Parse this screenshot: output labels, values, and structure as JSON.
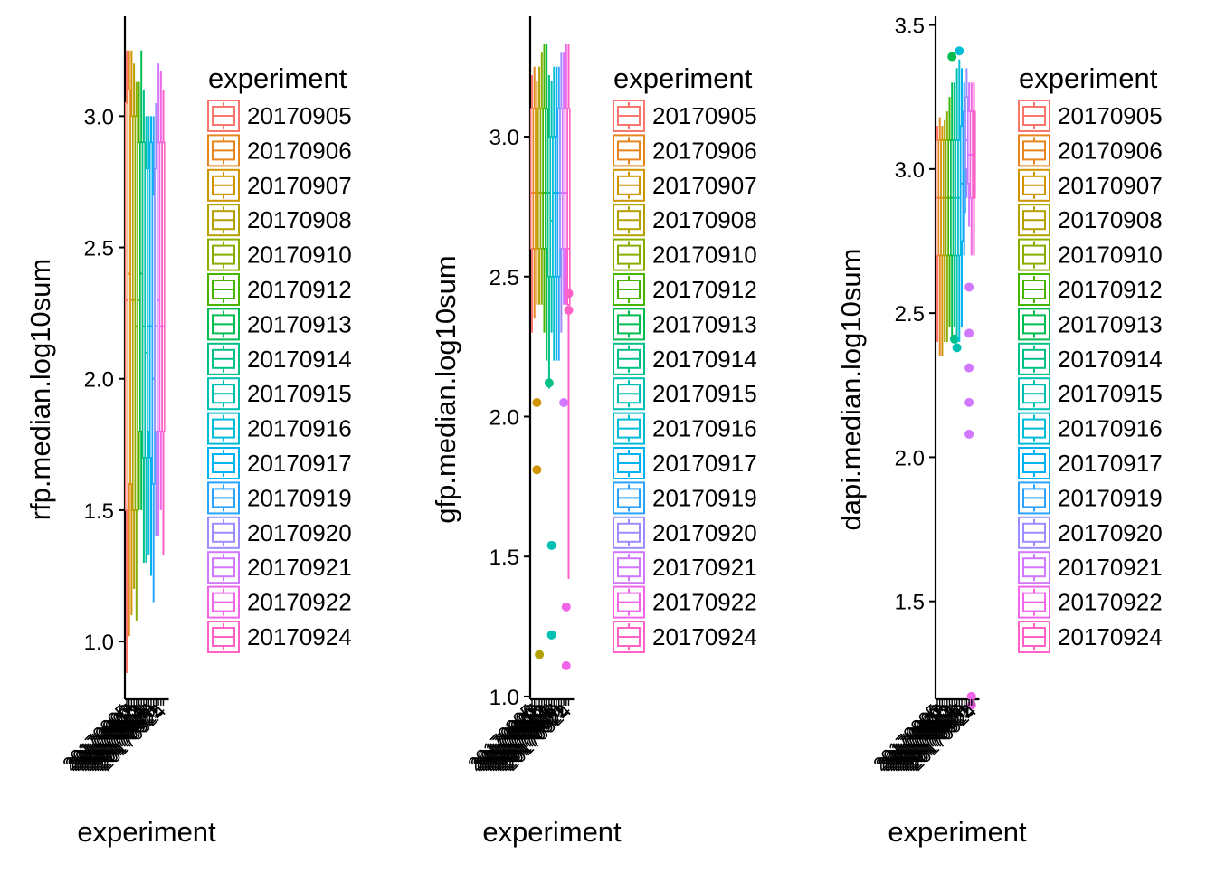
{
  "legend_title": "experiment",
  "experiments": [
    "20170905",
    "20170906",
    "20170907",
    "20170908",
    "20170910",
    "20170912",
    "20170913",
    "20170914",
    "20170915",
    "20170916",
    "20170917",
    "20170919",
    "20170920",
    "20170921",
    "20170922",
    "20170924"
  ],
  "colors": [
    "#F8766D",
    "#E7851E",
    "#D09400",
    "#B2A100",
    "#89AC00",
    "#45B500",
    "#00BC51",
    "#00C087",
    "#00C0B2",
    "#00BCD6",
    "#00B3F2",
    "#29A3FF",
    "#9C8DFF",
    "#D277FF",
    "#F166E8",
    "#FF61C7"
  ],
  "chart_data": [
    {
      "type": "boxplot",
      "xlabel": "experiment",
      "ylabel": "rfp.median.log10sum",
      "ylim": [
        0.78,
        3.38
      ],
      "yticks": [
        1.0,
        1.5,
        2.0,
        2.5,
        3.0
      ],
      "ytick_labels": [
        "1.0",
        "1.5",
        "2.0",
        "2.5",
        "3.0"
      ],
      "series": [
        {
          "name": "20170905",
          "min": 0.88,
          "q1": 1.5,
          "median": 2.3,
          "q3": 3.05,
          "max": 3.25,
          "outliers": []
        },
        {
          "name": "20170906",
          "min": 1.02,
          "q1": 1.6,
          "median": 2.4,
          "q3": 3.1,
          "max": 3.25,
          "outliers": []
        },
        {
          "name": "20170907",
          "min": 1.1,
          "q1": 1.6,
          "median": 2.3,
          "q3": 3.0,
          "max": 3.25,
          "outliers": []
        },
        {
          "name": "20170908",
          "min": 1.2,
          "q1": 1.5,
          "median": 2.3,
          "q3": 3.0,
          "max": 3.2,
          "outliers": []
        },
        {
          "name": "20170910",
          "min": 1.08,
          "q1": 1.5,
          "median": 2.2,
          "q3": 3.0,
          "max": 3.13,
          "outliers": []
        },
        {
          "name": "20170912",
          "min": 1.5,
          "q1": 1.8,
          "median": 2.3,
          "q3": 2.9,
          "max": 3.13,
          "outliers": []
        },
        {
          "name": "20170913",
          "min": 1.5,
          "q1": 1.8,
          "median": 2.4,
          "q3": 2.9,
          "max": 3.25,
          "outliers": []
        },
        {
          "name": "20170914",
          "min": 1.3,
          "q1": 1.7,
          "median": 2.2,
          "q3": 2.9,
          "max": 3.1,
          "outliers": []
        },
        {
          "name": "20170915",
          "min": 1.3,
          "q1": 1.7,
          "median": 2.1,
          "q3": 2.8,
          "max": 3.0,
          "outliers": []
        },
        {
          "name": "20170916",
          "min": 1.33,
          "q1": 1.8,
          "median": 2.2,
          "q3": 2.8,
          "max": 3.0,
          "outliers": []
        },
        {
          "name": "20170917",
          "min": 1.25,
          "q1": 1.7,
          "median": 2.2,
          "q3": 2.9,
          "max": 3.0,
          "outliers": []
        },
        {
          "name": "20170919",
          "min": 1.15,
          "q1": 1.6,
          "median": 2.0,
          "q3": 2.7,
          "max": 3.0,
          "outliers": []
        },
        {
          "name": "20170920",
          "min": 1.4,
          "q1": 1.8,
          "median": 2.2,
          "q3": 2.8,
          "max": 3.05,
          "outliers": []
        },
        {
          "name": "20170921",
          "min": 1.4,
          "q1": 1.8,
          "median": 2.3,
          "q3": 2.9,
          "max": 3.2,
          "outliers": []
        },
        {
          "name": "20170922",
          "min": 1.5,
          "q1": 1.8,
          "median": 2.2,
          "q3": 2.9,
          "max": 3.17,
          "outliers": []
        },
        {
          "name": "20170924",
          "min": 1.33,
          "q1": 1.8,
          "median": 2.2,
          "q3": 2.9,
          "max": 3.1,
          "outliers": []
        }
      ]
    },
    {
      "type": "boxplot",
      "xlabel": "experiment",
      "ylabel": "gfp.median.log10sum",
      "ylim": [
        0.99,
        3.43
      ],
      "yticks": [
        1.0,
        1.5,
        2.0,
        2.5,
        3.0
      ],
      "ytick_labels": [
        "1.0",
        "1.5",
        "2.0",
        "2.5",
        "3.0"
      ],
      "series": [
        {
          "name": "20170905",
          "min": 2.3,
          "q1": 2.6,
          "median": 2.8,
          "q3": 3.1,
          "max": 3.22,
          "outliers": []
        },
        {
          "name": "20170906",
          "min": 2.35,
          "q1": 2.6,
          "median": 2.8,
          "q3": 3.1,
          "max": 3.25,
          "outliers": []
        },
        {
          "name": "20170907",
          "min": 2.4,
          "q1": 2.6,
          "median": 2.8,
          "q3": 3.1,
          "max": 3.2,
          "outliers": [
            2.05,
            1.81
          ]
        },
        {
          "name": "20170908",
          "min": 2.4,
          "q1": 2.6,
          "median": 2.8,
          "q3": 3.1,
          "max": 3.25,
          "outliers": [
            1.15
          ]
        },
        {
          "name": "20170910",
          "min": 2.4,
          "q1": 2.6,
          "median": 2.8,
          "q3": 3.1,
          "max": 3.3,
          "outliers": []
        },
        {
          "name": "20170912",
          "min": 2.3,
          "q1": 2.6,
          "median": 2.8,
          "q3": 3.1,
          "max": 3.33,
          "outliers": []
        },
        {
          "name": "20170913",
          "min": 2.2,
          "q1": 2.6,
          "median": 2.8,
          "q3": 3.1,
          "max": 3.33,
          "outliers": []
        },
        {
          "name": "20170914",
          "min": 2.1,
          "q1": 2.5,
          "median": 2.8,
          "q3": 3.0,
          "max": 3.22,
          "outliers": [
            2.12
          ]
        },
        {
          "name": "20170915",
          "min": 2.3,
          "q1": 2.5,
          "median": 2.7,
          "q3": 3.0,
          "max": 3.2,
          "outliers": [
            1.54,
            1.22
          ]
        },
        {
          "name": "20170916",
          "min": 2.2,
          "q1": 2.5,
          "median": 2.8,
          "q3": 3.0,
          "max": 3.25,
          "outliers": []
        },
        {
          "name": "20170917",
          "min": 2.2,
          "q1": 2.5,
          "median": 2.8,
          "q3": 3.0,
          "max": 3.25,
          "outliers": []
        },
        {
          "name": "20170919",
          "min": 2.2,
          "q1": 2.5,
          "median": 2.8,
          "q3": 3.1,
          "max": 3.25,
          "outliers": []
        },
        {
          "name": "20170920",
          "min": 2.3,
          "q1": 2.6,
          "median": 2.8,
          "q3": 3.1,
          "max": 3.3,
          "outliers": []
        },
        {
          "name": "20170921",
          "min": 2.4,
          "q1": 2.6,
          "median": 2.8,
          "q3": 3.1,
          "max": 3.3,
          "outliers": [
            2.05
          ]
        },
        {
          "name": "20170922",
          "min": 2.4,
          "q1": 2.6,
          "median": 2.8,
          "q3": 3.1,
          "max": 3.33,
          "outliers": [
            1.32,
            1.11
          ]
        },
        {
          "name": "20170924",
          "min": 1.42,
          "q1": 2.4,
          "median": 2.6,
          "q3": 3.1,
          "max": 3.33,
          "outliers": [
            2.44,
            2.38
          ]
        }
      ]
    },
    {
      "type": "boxplot",
      "xlabel": "experiment",
      "ylabel": "dapi.median.log10sum",
      "ylim": [
        1.16,
        3.53
      ],
      "yticks": [
        1.5,
        2.0,
        2.5,
        3.0,
        3.5
      ],
      "ytick_labels": [
        "1.5",
        "2.0",
        "2.5",
        "3.0",
        "3.5"
      ],
      "series": [
        {
          "name": "20170905",
          "min": 2.4,
          "q1": 2.7,
          "median": 2.9,
          "q3": 3.1,
          "max": 3.15,
          "outliers": []
        },
        {
          "name": "20170906",
          "min": 2.35,
          "q1": 2.7,
          "median": 2.9,
          "q3": 3.1,
          "max": 3.18,
          "outliers": []
        },
        {
          "name": "20170907",
          "min": 2.35,
          "q1": 2.7,
          "median": 2.9,
          "q3": 3.1,
          "max": 3.15,
          "outliers": []
        },
        {
          "name": "20170908",
          "min": 2.4,
          "q1": 2.7,
          "median": 2.9,
          "q3": 3.1,
          "max": 3.17,
          "outliers": []
        },
        {
          "name": "20170910",
          "min": 2.4,
          "q1": 2.7,
          "median": 2.9,
          "q3": 3.1,
          "max": 3.2,
          "outliers": []
        },
        {
          "name": "20170912",
          "min": 2.45,
          "q1": 2.7,
          "median": 2.9,
          "q3": 3.1,
          "max": 3.25,
          "outliers": []
        },
        {
          "name": "20170913",
          "min": 2.4,
          "q1": 2.7,
          "median": 2.9,
          "q3": 3.1,
          "max": 3.3,
          "outliers": [
            3.39
          ]
        },
        {
          "name": "20170914",
          "min": 2.45,
          "q1": 2.7,
          "median": 2.9,
          "q3": 3.1,
          "max": 3.3,
          "outliers": [
            2.41
          ]
        },
        {
          "name": "20170915",
          "min": 2.4,
          "q1": 2.7,
          "median": 2.9,
          "q3": 3.1,
          "max": 3.35,
          "outliers": [
            2.38
          ]
        },
        {
          "name": "20170916",
          "min": 2.4,
          "q1": 2.7,
          "median": 2.9,
          "q3": 3.1,
          "max": 3.38,
          "outliers": [
            3.41
          ]
        },
        {
          "name": "20170917",
          "min": 2.45,
          "q1": 2.75,
          "median": 2.95,
          "q3": 3.15,
          "max": 3.35,
          "outliers": []
        },
        {
          "name": "20170919",
          "min": 2.7,
          "q1": 2.85,
          "median": 3.0,
          "q3": 3.2,
          "max": 3.3,
          "outliers": []
        },
        {
          "name": "20170920",
          "min": 2.9,
          "q1": 3.0,
          "median": 3.1,
          "q3": 3.25,
          "max": 3.35,
          "outliers": []
        },
        {
          "name": "20170921",
          "min": 2.8,
          "q1": 2.95,
          "median": 3.05,
          "q3": 3.2,
          "max": 3.3,
          "outliers": [
            2.59,
            2.43,
            2.31,
            2.19,
            2.08
          ]
        },
        {
          "name": "20170922",
          "min": 2.7,
          "q1": 2.9,
          "median": 3.05,
          "q3": 3.2,
          "max": 3.3,
          "outliers": [
            1.17,
            1.14
          ]
        },
        {
          "name": "20170924",
          "min": 2.7,
          "q1": 2.9,
          "median": 3.0,
          "q3": 3.2,
          "max": 3.3,
          "outliers": []
        }
      ]
    }
  ]
}
